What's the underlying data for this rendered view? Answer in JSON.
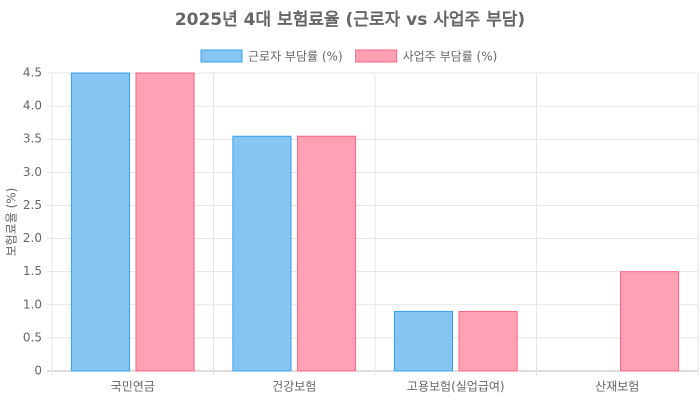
{
  "chart_data": {
    "type": "bar",
    "title": "2025년 4대 보험료율 (근로자 vs 사업주 부담)",
    "y_label": "보험료율 (%)",
    "categories": [
      "국민연금",
      "건강보험",
      "고용보험(실업급여)",
      "산재보험"
    ],
    "series": [
      {
        "name": "근로자 부담률 (%)",
        "color": "#36a2eb",
        "fill": "#86c5f1",
        "values": [
          4.5,
          3.545,
          0.9,
          0
        ]
      },
      {
        "name": "사업주 부담률 (%)",
        "color": "#ff6384",
        "fill": "#ffa1b5",
        "values": [
          4.5,
          3.545,
          0.9,
          1.5
        ]
      }
    ],
    "ylim": [
      0,
      4.5
    ],
    "yticks": [
      0,
      0.5,
      {
        "value": 1,
        "label": "1.0"
      },
      1.5,
      {
        "value": 2,
        "label": "2.0"
      },
      2.5,
      {
        "value": 3,
        "label": "3.0"
      },
      3.5,
      {
        "value": 4,
        "label": "4.0"
      },
      4.5
    ],
    "grid": true,
    "legend": "top"
  }
}
